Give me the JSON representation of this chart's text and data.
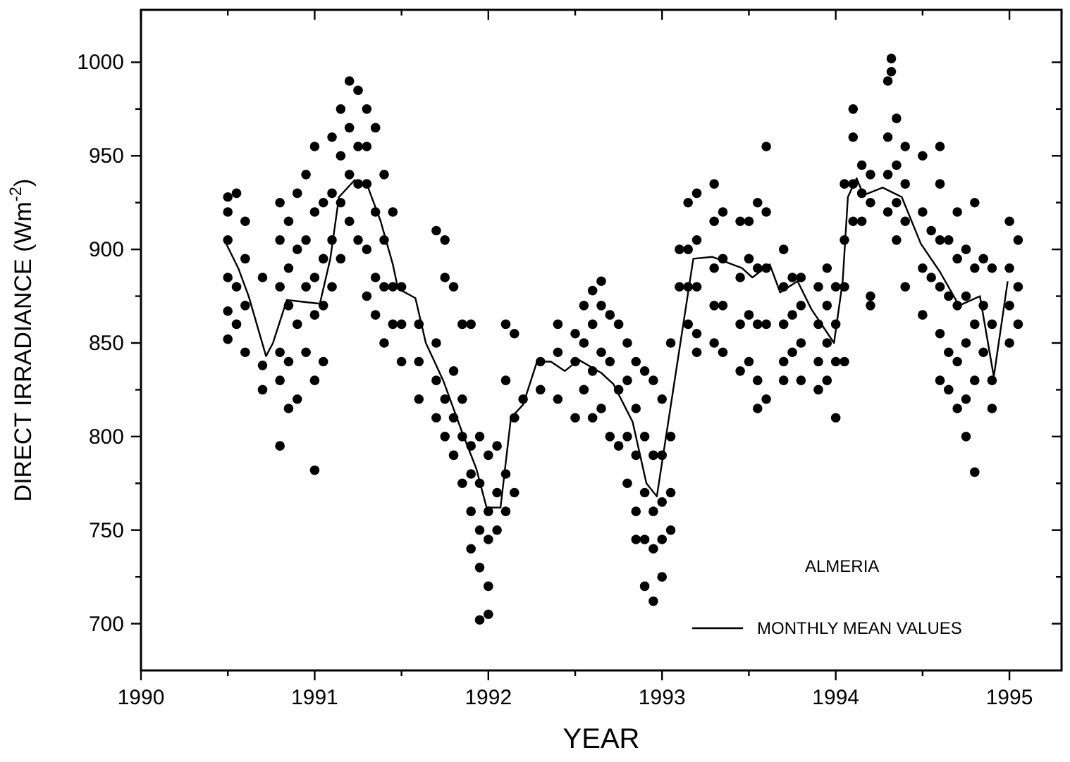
{
  "chart_data": {
    "type": "scatter",
    "xlabel": "YEAR",
    "ylabel": "DIRECT IRRADIANCE (Wm$^{-2}$)",
    "xlim": [
      1990,
      1995.3
    ],
    "ylim": [
      675,
      1028
    ],
    "xticks": [
      1990,
      {
        "value": 1990.5,
        "label": null
      },
      1991,
      {
        "value": 1991.5,
        "label": null
      },
      1992,
      {
        "value": 1992.5,
        "label": null
      },
      1993,
      {
        "value": 1993.5,
        "label": null
      },
      1994,
      {
        "value": 1994.5,
        "label": null
      },
      1995
    ],
    "yticks": [
      700,
      {
        "value": 725,
        "label": null
      },
      750,
      {
        "value": 775,
        "label": null
      },
      800,
      {
        "value": 825,
        "label": null
      },
      850,
      {
        "value": 875,
        "label": null
      },
      900,
      {
        "value": 925,
        "label": null
      },
      950,
      {
        "value": 975,
        "label": null
      },
      1000
    ],
    "grid": false,
    "legend": "bottom right",
    "annotations": [
      "ALMERIA"
    ],
    "series": [
      {
        "color": "#000000",
        "marker": "circle",
        "x": [
          1990.5,
          1990.5,
          1990.5,
          1990.5,
          1990.5,
          1990.5,
          1990.55,
          1990.55,
          1990.55,
          1990.6,
          1990.6,
          1990.6,
          1990.6,
          1990.7,
          1990.7,
          1990.7,
          1990.8,
          1990.8,
          1990.8,
          1990.8,
          1990.8,
          1990.8,
          1990.85,
          1990.85,
          1990.85,
          1990.85,
          1990.85,
          1990.9,
          1990.9,
          1990.9,
          1990.9,
          1990.95,
          1990.95,
          1990.95,
          1990.95,
          1991,
          1991,
          1991,
          1991,
          1991,
          1991,
          1991.05,
          1991.05,
          1991.05,
          1991.05,
          1991.1,
          1991.1,
          1991.1,
          1991.1,
          1991.15,
          1991.15,
          1991.15,
          1991.15,
          1991.2,
          1991.2,
          1991.2,
          1991.2,
          1991.25,
          1991.25,
          1991.25,
          1991.25,
          1991.3,
          1991.3,
          1991.3,
          1991.3,
          1991.3,
          1991.35,
          1991.35,
          1991.35,
          1991.35,
          1991.4,
          1991.4,
          1991.4,
          1991.4,
          1991.45,
          1991.45,
          1991.45,
          1991.5,
          1991.5,
          1991.5,
          1991.6,
          1991.6,
          1991.6,
          1991.7,
          1991.7,
          1991.7,
          1991.7,
          1991.75,
          1991.75,
          1991.75,
          1991.75,
          1991.8,
          1991.8,
          1991.8,
          1991.8,
          1991.85,
          1991.85,
          1991.85,
          1991.85,
          1991.9,
          1991.9,
          1991.9,
          1991.9,
          1991.9,
          1991.95,
          1991.95,
          1991.95,
          1991.95,
          1991.95,
          1992,
          1992,
          1992,
          1992,
          1992,
          1992.05,
          1992.05,
          1992.05,
          1992.1,
          1992.1,
          1992.1,
          1992.1,
          1992.15,
          1992.15,
          1992.15,
          1992.2,
          1992.3,
          1992.3,
          1992.4,
          1992.4,
          1992.4,
          1992.5,
          1992.5,
          1992.5,
          1992.55,
          1992.55,
          1992.55,
          1992.6,
          1992.6,
          1992.6,
          1992.6,
          1992.65,
          1992.65,
          1992.65,
          1992.65,
          1992.7,
          1992.7,
          1992.7,
          1992.75,
          1992.75,
          1992.75,
          1992.8,
          1992.8,
          1992.8,
          1992.8,
          1992.85,
          1992.85,
          1992.85,
          1992.85,
          1992.85,
          1992.9,
          1992.9,
          1992.9,
          1992.9,
          1992.9,
          1992.95,
          1992.95,
          1992.95,
          1992.95,
          1992.95,
          1993,
          1993,
          1993,
          1993,
          1993,
          1993.05,
          1993.05,
          1993.05,
          1993.05,
          1993.1,
          1993.1,
          1993.15,
          1993.15,
          1993.15,
          1993.15,
          1993.2,
          1993.2,
          1993.2,
          1993.2,
          1993.2,
          1993.3,
          1993.3,
          1993.3,
          1993.3,
          1993.3,
          1993.35,
          1993.35,
          1993.35,
          1993.35,
          1993.45,
          1993.45,
          1993.45,
          1993.45,
          1993.5,
          1993.5,
          1993.5,
          1993.5,
          1993.55,
          1993.55,
          1993.55,
          1993.55,
          1993.55,
          1993.6,
          1993.6,
          1993.6,
          1993.6,
          1993.6,
          1993.7,
          1993.7,
          1993.7,
          1993.7,
          1993.7,
          1993.75,
          1993.75,
          1993.75,
          1993.8,
          1993.8,
          1993.8,
          1993.8,
          1993.9,
          1993.9,
          1993.9,
          1993.9,
          1993.95,
          1993.95,
          1993.95,
          1993.95,
          1994,
          1994,
          1994,
          1994,
          1994.05,
          1994.05,
          1994.05,
          1994.05,
          1994.1,
          1994.1,
          1994.1,
          1994.1,
          1994.15,
          1994.15,
          1994.15,
          1994.2,
          1994.2,
          1994.2,
          1994.2,
          1994.3,
          1994.3,
          1994.3,
          1994.3,
          1994.32,
          1994.32,
          1994.35,
          1994.35,
          1994.35,
          1994.35,
          1994.4,
          1994.4,
          1994.4,
          1994.4,
          1994.5,
          1994.5,
          1994.5,
          1994.5,
          1994.55,
          1994.55,
          1994.6,
          1994.6,
          1994.6,
          1994.6,
          1994.6,
          1994.6,
          1994.65,
          1994.65,
          1994.65,
          1994.65,
          1994.7,
          1994.7,
          1994.7,
          1994.7,
          1994.7,
          1994.75,
          1994.75,
          1994.75,
          1994.75,
          1994.75,
          1994.8,
          1994.8,
          1994.8,
          1994.8,
          1994.8,
          1994.85,
          1994.85,
          1994.85,
          1994.9,
          1994.9,
          1994.9,
          1994.9,
          1995,
          1995,
          1995,
          1995,
          1995.05,
          1995.05,
          1995.05
        ],
        "values": [
          928,
          920,
          905,
          885,
          867,
          852,
          930,
          880,
          860,
          915,
          895,
          870,
          845,
          885,
          838,
          825,
          925,
          905,
          880,
          845,
          830,
          795,
          915,
          890,
          870,
          840,
          815,
          930,
          900,
          860,
          820,
          940,
          905,
          880,
          845,
          955,
          920,
          885,
          865,
          830,
          782,
          925,
          895,
          870,
          840,
          960,
          930,
          905,
          880,
          975,
          950,
          925,
          895,
          990,
          965,
          940,
          915,
          985,
          955,
          935,
          905,
          975,
          955,
          935,
          900,
          875,
          965,
          920,
          885,
          865,
          940,
          905,
          880,
          850,
          920,
          880,
          860,
          880,
          860,
          840,
          860,
          840,
          820,
          910,
          850,
          830,
          810,
          905,
          885,
          820,
          800,
          880,
          835,
          810,
          790,
          860,
          820,
          800,
          775,
          860,
          795,
          780,
          760,
          740,
          800,
          775,
          750,
          730,
          702,
          790,
          760,
          745,
          720,
          705,
          795,
          770,
          750,
          860,
          830,
          780,
          760,
          855,
          810,
          770,
          820,
          840,
          825,
          860,
          845,
          820,
          855,
          840,
          810,
          870,
          850,
          825,
          878,
          860,
          835,
          810,
          883,
          870,
          845,
          815,
          865,
          840,
          800,
          860,
          825,
          795,
          850,
          830,
          800,
          775,
          840,
          815,
          790,
          760,
          745,
          835,
          800,
          770,
          745,
          720,
          830,
          790,
          760,
          740,
          712,
          820,
          790,
          765,
          745,
          725,
          850,
          800,
          770,
          750,
          900,
          880,
          925,
          900,
          880,
          860,
          930,
          905,
          880,
          855,
          845,
          935,
          915,
          890,
          870,
          850,
          920,
          895,
          870,
          845,
          915,
          885,
          860,
          835,
          915,
          895,
          865,
          840,
          925,
          890,
          860,
          830,
          815,
          955,
          920,
          890,
          860,
          820,
          900,
          880,
          860,
          840,
          830,
          885,
          865,
          845,
          885,
          870,
          850,
          830,
          880,
          860,
          840,
          825,
          890,
          870,
          850,
          830,
          880,
          860,
          840,
          810,
          935,
          905,
          880,
          840,
          975,
          960,
          935,
          915,
          945,
          930,
          915,
          940,
          925,
          875,
          870,
          990,
          960,
          940,
          920,
          1002,
          995,
          970,
          945,
          925,
          905,
          955,
          935,
          915,
          880,
          950,
          920,
          890,
          865,
          910,
          885,
          955,
          935,
          905,
          880,
          855,
          830,
          905,
          875,
          845,
          825,
          920,
          895,
          870,
          840,
          815,
          900,
          875,
          850,
          820,
          800,
          925,
          890,
          860,
          830,
          781,
          895,
          870,
          845,
          890,
          860,
          830,
          815,
          915,
          890,
          870,
          850,
          905,
          880,
          860
        ]
      },
      {
        "type": "line",
        "name": "MONTHLY MEAN VALUES",
        "color": "#000000",
        "marker": "none",
        "line_style": "solid",
        "x": [
          1990.48,
          1990.56,
          1990.62,
          1990.72,
          1990.76,
          1990.84,
          1990.93,
          1991.03,
          1991.09,
          1991.14,
          1991.23,
          1991.3,
          1991.38,
          1991.45,
          1991.48,
          1991.58,
          1991.64,
          1991.74,
          1991.85,
          1991.93,
          1991.99,
          1992.07,
          1992.13,
          1992.2,
          1992.28,
          1992.36,
          1992.44,
          1992.52,
          1992.65,
          1992.72,
          1992.83,
          1992.91,
          1992.97,
          1993.18,
          1993.29,
          1993.46,
          1993.52,
          1993.62,
          1993.68,
          1993.78,
          1993.86,
          1993.99,
          1994.04,
          1994.07,
          1994.12,
          1994.16,
          1994.27,
          1994.38,
          1994.49,
          1994.6,
          1994.71,
          1994.83,
          1994.91,
          1994.99
        ],
        "values": [
          905,
          890,
          875,
          843,
          850,
          873,
          872,
          871,
          895,
          928,
          937,
          935,
          915,
          892,
          879,
          874,
          850,
          830,
          802,
          783,
          762,
          762,
          810,
          817,
          840,
          840,
          835,
          841,
          834,
          828,
          808,
          775,
          768,
          895,
          896,
          890,
          885,
          892,
          877,
          883,
          868,
          850,
          883,
          928,
          938,
          929,
          933,
          928,
          903,
          888,
          870,
          875,
          832,
          883
        ]
      }
    ]
  }
}
